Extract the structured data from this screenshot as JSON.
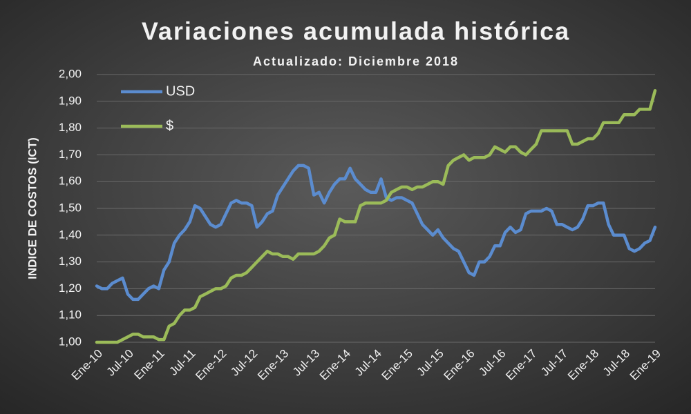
{
  "chart_data": {
    "type": "line",
    "title": "Variaciones acumulada histórica",
    "subtitle": "Actualizado: Diciembre 2018",
    "y_label": "INDICE DE COSTOS (ICT)",
    "categories": [
      "Ene-10",
      null,
      null,
      null,
      null,
      null,
      "Jul-10",
      null,
      null,
      null,
      null,
      null,
      "Ene-11",
      null,
      null,
      null,
      null,
      null,
      "Jul-11",
      null,
      null,
      null,
      null,
      null,
      "Ene-12",
      null,
      null,
      null,
      null,
      null,
      "Jul-12",
      null,
      null,
      null,
      null,
      null,
      "Ene-13",
      null,
      null,
      null,
      null,
      null,
      "Jul-13",
      null,
      null,
      null,
      null,
      null,
      "Ene-14",
      null,
      null,
      null,
      null,
      null,
      "Jul-14",
      null,
      null,
      null,
      null,
      null,
      "Ene-15",
      null,
      null,
      null,
      null,
      null,
      "Jul-15",
      null,
      null,
      null,
      null,
      null,
      "Ene-16",
      null,
      null,
      null,
      null,
      null,
      "Jul-16",
      null,
      null,
      null,
      null,
      null,
      "Ene-17",
      null,
      null,
      null,
      null,
      null,
      "Jul-17",
      null,
      null,
      null,
      null,
      null,
      "Ene-18",
      null,
      null,
      null,
      null,
      null,
      "Jul-18",
      null,
      null,
      null,
      null,
      null,
      "Ene-19"
    ],
    "series": [
      {
        "name": "USD",
        "color": "#5b8ccf",
        "values": [
          1.21,
          1.2,
          1.2,
          1.22,
          1.23,
          1.24,
          1.18,
          1.16,
          1.16,
          1.18,
          1.2,
          1.21,
          1.2,
          1.27,
          1.3,
          1.37,
          1.4,
          1.42,
          1.45,
          1.51,
          1.5,
          1.47,
          1.44,
          1.43,
          1.44,
          1.48,
          1.52,
          1.53,
          1.52,
          1.52,
          1.51,
          1.43,
          1.45,
          1.48,
          1.49,
          1.55,
          1.58,
          1.61,
          1.64,
          1.66,
          1.66,
          1.65,
          1.55,
          1.56,
          1.52,
          1.56,
          1.59,
          1.61,
          1.61,
          1.65,
          1.61,
          1.59,
          1.57,
          1.56,
          1.56,
          1.61,
          1.54,
          1.53,
          1.54,
          1.54,
          1.53,
          1.52,
          1.48,
          1.44,
          1.42,
          1.4,
          1.42,
          1.39,
          1.37,
          1.35,
          1.34,
          1.3,
          1.26,
          1.25,
          1.3,
          1.3,
          1.32,
          1.36,
          1.36,
          1.41,
          1.43,
          1.41,
          1.42,
          1.48,
          1.49,
          1.49,
          1.49,
          1.5,
          1.49,
          1.44,
          1.44,
          1.43,
          1.42,
          1.43,
          1.46,
          1.51,
          1.51,
          1.52,
          1.52,
          1.44,
          1.4,
          1.4,
          1.4,
          1.35,
          1.34,
          1.35,
          1.37,
          1.38,
          1.43
        ]
      },
      {
        "name": "$",
        "color": "#9bbb59",
        "values": [
          1.0,
          1.0,
          1.0,
          1.0,
          1.0,
          1.01,
          1.02,
          1.03,
          1.03,
          1.02,
          1.02,
          1.02,
          1.01,
          1.01,
          1.06,
          1.07,
          1.1,
          1.12,
          1.12,
          1.13,
          1.17,
          1.18,
          1.19,
          1.2,
          1.2,
          1.21,
          1.24,
          1.25,
          1.25,
          1.26,
          1.28,
          1.3,
          1.32,
          1.34,
          1.33,
          1.33,
          1.32,
          1.32,
          1.31,
          1.33,
          1.33,
          1.33,
          1.33,
          1.34,
          1.36,
          1.39,
          1.4,
          1.46,
          1.45,
          1.45,
          1.45,
          1.51,
          1.52,
          1.52,
          1.52,
          1.52,
          1.53,
          1.56,
          1.57,
          1.58,
          1.58,
          1.57,
          1.58,
          1.58,
          1.59,
          1.6,
          1.6,
          1.59,
          1.66,
          1.68,
          1.69,
          1.7,
          1.68,
          1.69,
          1.69,
          1.69,
          1.7,
          1.73,
          1.72,
          1.71,
          1.73,
          1.73,
          1.71,
          1.7,
          1.72,
          1.74,
          1.79,
          1.79,
          1.79,
          1.79,
          1.79,
          1.79,
          1.74,
          1.74,
          1.75,
          1.76,
          1.76,
          1.78,
          1.82,
          1.82,
          1.82,
          1.82,
          1.85,
          1.85,
          1.85,
          1.87,
          1.87,
          1.87,
          1.94
        ]
      }
    ],
    "ylim": [
      1,
      2
    ],
    "yticks": [
      {
        "value": 1,
        "label": "1,00"
      },
      {
        "value": 1.1,
        "label": "1,10"
      },
      {
        "value": 1.2,
        "label": "1,20"
      },
      {
        "value": 1.3,
        "label": "1,30"
      },
      {
        "value": 1.4,
        "label": "1,40"
      },
      {
        "value": 1.5,
        "label": "1,50"
      },
      {
        "value": 1.6,
        "label": "1,60"
      },
      {
        "value": 1.7,
        "label": "1,70"
      },
      {
        "value": 1.8,
        "label": "1,80"
      },
      {
        "value": 1.9,
        "label": "1,90"
      },
      {
        "value": 2,
        "label": "2,00"
      }
    ],
    "grid": true,
    "legend": "top-left"
  }
}
